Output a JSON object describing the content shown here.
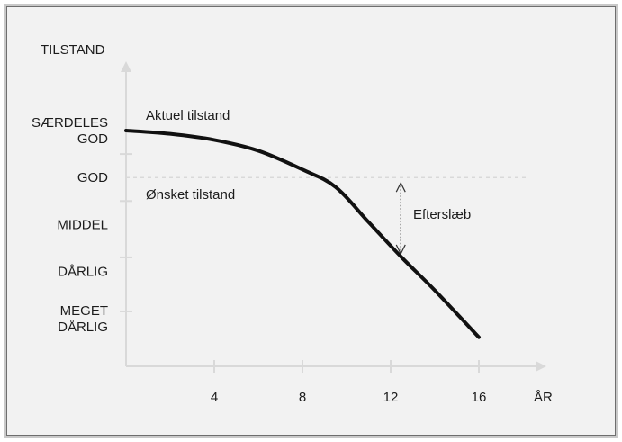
{
  "axes": {
    "y_title": "TILSTAND",
    "x_title": "ÅR",
    "y_levels": [
      {
        "lines": [
          "SÆRDELES",
          "GOD"
        ],
        "value": 5
      },
      {
        "lines": [
          "GOD"
        ],
        "value": 4
      },
      {
        "lines": [
          "MIDDEL"
        ],
        "value": 3
      },
      {
        "lines": [
          "DÅRLIG"
        ],
        "value": 2
      },
      {
        "lines": [
          "MEGET",
          "DÅRLIG"
        ],
        "value": 1
      }
    ],
    "x_ticks": [
      "4",
      "8",
      "12",
      "16"
    ]
  },
  "curve": {
    "label": "Aktuel tilstand",
    "points": [
      {
        "year": 0,
        "level": 5.0
      },
      {
        "year": 2,
        "level": 4.93
      },
      {
        "year": 4,
        "level": 4.8
      },
      {
        "year": 6,
        "level": 4.57
      },
      {
        "year": 8,
        "level": 4.17
      },
      {
        "year": 9.5,
        "level": 3.8
      },
      {
        "year": 11,
        "level": 3.05
      },
      {
        "year": 12.5,
        "level": 2.3
      },
      {
        "year": 14,
        "level": 1.6
      },
      {
        "year": 16,
        "level": 0.6
      }
    ]
  },
  "target": {
    "label": "Ønsket tilstand",
    "level": 4
  },
  "gap": {
    "label": "Efterslæb",
    "year": 12.5
  },
  "colors": {
    "background": "#f2f2f2",
    "axis": "#d9d9d9",
    "curve": "#111111",
    "dashed": "#d9d9d9",
    "text": "#1c1c1c"
  }
}
